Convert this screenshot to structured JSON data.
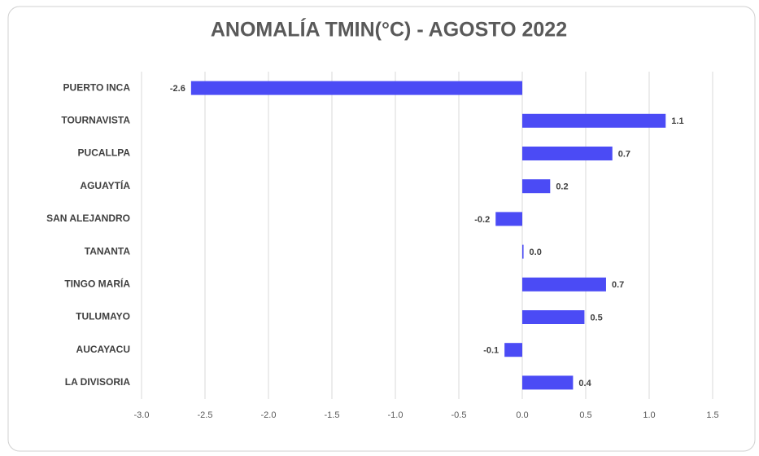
{
  "chart_data": {
    "type": "hbar",
    "title": "ANOMALÍA TMIN(°C) - AGOSTO 2022",
    "categories": [
      "PUERTO INCA",
      "TOURNAVISTA",
      "PUCALLPA",
      "AGUAYTÍA",
      "SAN ALEJANDRO",
      "TANANTA",
      "TINGO MARÍA",
      "TULUMAYO",
      "AUCAYACU",
      "LA DIVISORIA"
    ],
    "values": [
      -2.61,
      1.13,
      0.71,
      0.22,
      -0.21,
      0.01,
      0.66,
      0.49,
      -0.14,
      0.4
    ],
    "value_labels": [
      "-2.6",
      "1.1",
      "0.7",
      "0.2",
      "-0.2",
      "0.0",
      "0.7",
      "0.5",
      "-0.1",
      "0.4"
    ],
    "color": "#4b4bf5",
    "xlim": [
      -3,
      1.5
    ],
    "xticks": [
      {
        "value": -3,
        "label": "-3.0"
      },
      -2.5,
      {
        "value": -2,
        "label": "-2.0"
      },
      -1.5,
      {
        "value": -1,
        "label": "-1.0"
      },
      -0.5,
      {
        "value": 0,
        "label": "0.0"
      },
      0.5,
      {
        "value": 1,
        "label": "1.0"
      },
      1.5
    ],
    "grid": true
  }
}
